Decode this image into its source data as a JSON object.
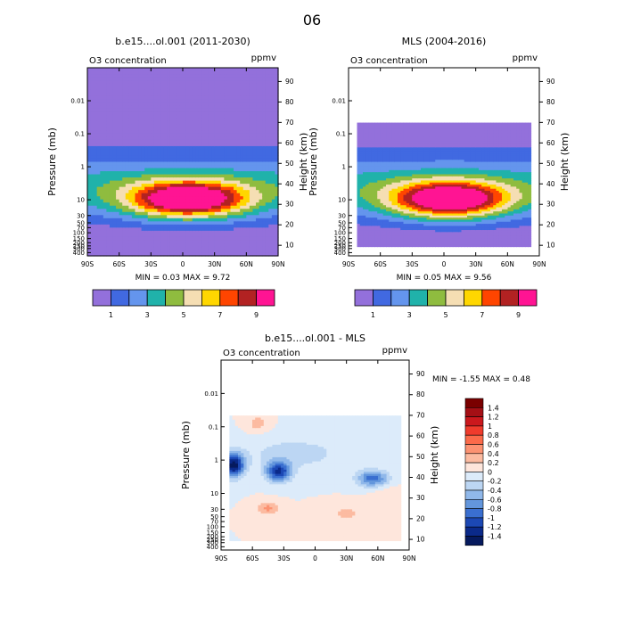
{
  "page_title": "06",
  "chart_data": [
    {
      "type": "heatmap",
      "id": "model",
      "title": "b.e15....ol.001 (2011-2030)",
      "left_label": "O3 concentration",
      "right_label": "ppmv",
      "ylabel": "Pressure (mb)",
      "ylabel_right": "Height (km)",
      "x_ticks": [
        "90S",
        "60S",
        "30S",
        "0",
        "30N",
        "60N",
        "90N"
      ],
      "y_ticks": [
        "0.01",
        "0.1",
        "1",
        "10",
        "30",
        "50",
        "70",
        "100",
        "150",
        "200",
        "250",
        "300",
        "400"
      ],
      "height_ticks": [
        "10",
        "20",
        "30",
        "40",
        "50",
        "60",
        "70",
        "80",
        "90"
      ],
      "lat_range": [
        -90,
        90
      ],
      "data_lat_range": [
        -90,
        90
      ],
      "data_pressure_top_mb": 0.001,
      "min_label": "MIN =  0.03  MAX =  9.72",
      "min": 0.03,
      "max": 9.72
    },
    {
      "type": "heatmap",
      "id": "mls",
      "title": "MLS (2004-2016)",
      "left_label": "O3 concentration",
      "right_label": "ppmv",
      "ylabel": "Pressure (mb)",
      "ylabel_right": "Height (km)",
      "x_ticks": [
        "90S",
        "60S",
        "30S",
        "0",
        "30N",
        "60N",
        "90N"
      ],
      "y_ticks": [
        "0.01",
        "0.1",
        "1",
        "10",
        "30",
        "50",
        "70",
        "100",
        "150",
        "200",
        "250",
        "300",
        "400"
      ],
      "height_ticks": [
        "10",
        "20",
        "30",
        "40",
        "50",
        "60",
        "70",
        "80",
        "90"
      ],
      "lat_range": [
        -90,
        90
      ],
      "data_lat_range": [
        -82,
        82
      ],
      "data_pressure_top_mb": 0.046,
      "data_pressure_bottom_mb": 261,
      "min_label": "MIN =  0.05  MAX =  9.56",
      "min": 0.05,
      "max": 9.56
    },
    {
      "type": "heatmap",
      "id": "diff",
      "title": "b.e15....ol.001 - MLS",
      "left_label": "O3 concentration",
      "right_label": "ppmv",
      "ylabel": "Pressure (mb)",
      "ylabel_right": "Height (km)",
      "x_ticks": [
        "90S",
        "60S",
        "30S",
        "0",
        "30N",
        "60N",
        "90N"
      ],
      "y_ticks": [
        "0.01",
        "0.1",
        "1",
        "10",
        "30",
        "50",
        "70",
        "100",
        "150",
        "200",
        "250",
        "300",
        "400"
      ],
      "height_ticks": [
        "10",
        "20",
        "30",
        "40",
        "50",
        "60",
        "70",
        "80",
        "90"
      ],
      "lat_range": [
        -90,
        90
      ],
      "data_lat_range": [
        -82,
        82
      ],
      "data_pressure_top_mb": 0.046,
      "data_pressure_bottom_mb": 261,
      "min_label": "MIN =  -1.55  MAX =   0.48",
      "min": -1.55,
      "max": 0.48
    }
  ],
  "abs_colorbar": {
    "labels": [
      "1",
      "3",
      "5",
      "7",
      "9"
    ],
    "colors": [
      "#9370db",
      "#4169e1",
      "#6495ed",
      "#20b2aa",
      "#8fbc3f",
      "#f5deb3",
      "#ffd700",
      "#ff4500",
      "#b22222",
      "#ff1493"
    ]
  },
  "diff_colorbar": {
    "labels": [
      "1.4",
      "1.2",
      "1",
      "0.8",
      "0.6",
      "0.4",
      "0.2",
      "0",
      "-0.2",
      "-0.4",
      "-0.6",
      "-0.8",
      "-1",
      "-1.2",
      "-1.4"
    ],
    "colors": [
      "#7a0000",
      "#a50f15",
      "#cb181d",
      "#ef3b2c",
      "#fb6a4a",
      "#fc9272",
      "#fcbba1",
      "#fee6dc",
      "#dcebfa",
      "#bcd6f3",
      "#90b8ea",
      "#6396dc",
      "#3a6fd0",
      "#1c48b4",
      "#0b2a8a",
      "#061a5e"
    ]
  }
}
